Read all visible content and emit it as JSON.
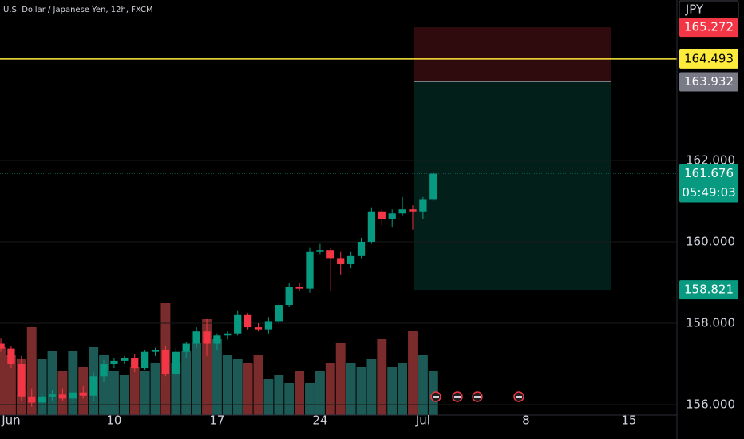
{
  "chart_data": {
    "type": "candlestick",
    "title": "U.S. Dollar / Japanese Yen, 12h, FXCM",
    "currency": "JPY",
    "up_color": "#089981",
    "down_color": "#f23645",
    "volume_up_color": "#1d5a56",
    "volume_down_color": "#7a2b2b",
    "candles": {
      "open": [
        157.5,
        157.38,
        157.0,
        156.2,
        156.05,
        156.2,
        156.25,
        156.15,
        156.3,
        156.22,
        156.7,
        157.0,
        157.08,
        157.15,
        156.9,
        157.3,
        157.35,
        156.75,
        157.3,
        157.5,
        157.8,
        157.5,
        157.7,
        157.75,
        158.2,
        157.9,
        157.85,
        158.05,
        158.45,
        158.9,
        158.85,
        159.75,
        159.8,
        159.6,
        159.45,
        159.65,
        160.0,
        160.75,
        160.55,
        160.7,
        160.8,
        160.75,
        161.05
      ],
      "high": [
        157.62,
        157.45,
        157.2,
        156.4,
        156.3,
        156.35,
        156.4,
        156.35,
        156.45,
        156.8,
        157.1,
        157.15,
        157.2,
        157.25,
        157.35,
        157.4,
        157.45,
        157.4,
        157.55,
        157.9,
        158.1,
        157.75,
        157.8,
        158.3,
        158.25,
        158.0,
        158.15,
        158.5,
        159.0,
        159.0,
        159.85,
        159.95,
        159.85,
        159.75,
        159.75,
        160.1,
        160.85,
        160.8,
        160.8,
        161.1,
        160.9,
        161.1,
        161.7
      ],
      "low": [
        157.3,
        156.9,
        156.1,
        155.95,
        155.9,
        156.1,
        156.1,
        156.05,
        156.15,
        156.1,
        156.55,
        156.9,
        157.0,
        156.8,
        156.85,
        157.2,
        156.7,
        156.7,
        157.15,
        157.4,
        157.2,
        157.35,
        157.6,
        157.7,
        157.85,
        157.8,
        157.75,
        158.0,
        158.4,
        158.8,
        158.75,
        159.7,
        158.8,
        159.2,
        159.35,
        159.6,
        159.95,
        160.4,
        160.35,
        160.65,
        160.3,
        160.55,
        161.0
      ],
      "close": [
        157.38,
        157.0,
        156.2,
        156.05,
        156.2,
        156.25,
        156.15,
        156.3,
        156.22,
        156.7,
        157.0,
        157.08,
        157.15,
        156.9,
        157.3,
        157.35,
        156.75,
        157.3,
        157.5,
        157.8,
        157.5,
        157.7,
        157.75,
        158.2,
        157.9,
        157.85,
        158.05,
        158.45,
        158.9,
        158.85,
        159.75,
        159.8,
        159.6,
        159.45,
        159.65,
        160.0,
        160.75,
        160.55,
        160.7,
        160.8,
        160.75,
        161.05,
        161.676
      ],
      "volume": [
        85,
        75,
        70,
        110,
        70,
        80,
        55,
        80,
        60,
        85,
        75,
        55,
        50,
        60,
        55,
        65,
        140,
        65,
        80,
        90,
        120,
        95,
        75,
        70,
        65,
        75,
        45,
        50,
        40,
        55,
        40,
        55,
        65,
        90,
        65,
        60,
        70,
        95,
        60,
        65,
        105,
        75,
        55
      ]
    },
    "ylim": [
      155.745,
      165.941
    ],
    "yticks": [
      {
        "value": 156,
        "label": "156.000"
      },
      {
        "value": 158,
        "label": "158.000"
      },
      {
        "value": 160,
        "label": "160.000"
      },
      {
        "value": 162,
        "label": "162.000"
      }
    ],
    "xlim": [
      -0.08,
      65.66
    ],
    "xticks": [
      {
        "value": 1,
        "label": "Jun"
      },
      {
        "value": 11,
        "label": "10"
      },
      {
        "value": 21,
        "label": "17"
      },
      {
        "value": 31,
        "label": "24"
      },
      {
        "value": 41,
        "label": "Jul"
      },
      {
        "value": 51,
        "label": "8"
      },
      {
        "value": 61,
        "label": "15"
      }
    ],
    "position": {
      "stop": 165.272,
      "entry": 163.932,
      "target": 158.821,
      "stop_color": "#f23645",
      "entry_color": "#787b86",
      "target_color": "#089981"
    },
    "alert_line": {
      "value": 164.493,
      "color": "#ffeb3b"
    },
    "last_price": {
      "value": 161.676,
      "countdown": "05:49:03",
      "color": "#089981"
    }
  }
}
